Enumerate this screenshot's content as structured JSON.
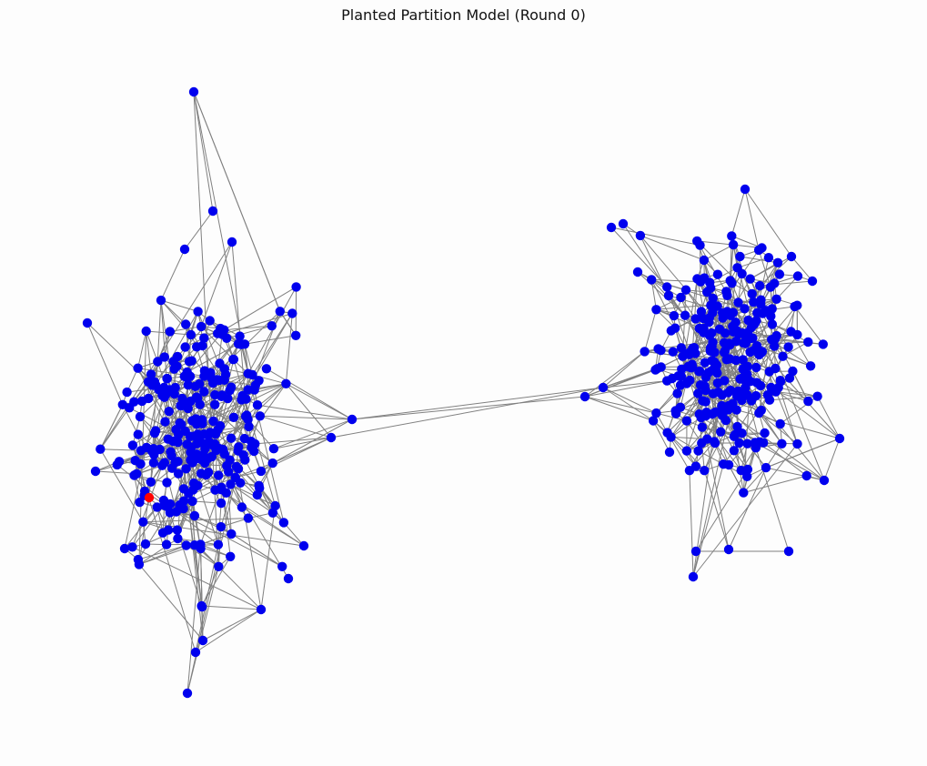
{
  "figure": {
    "title": "Planted Partition Model (Round 0)"
  },
  "style": {
    "background": "#fdfdfd",
    "node_color": "#0000ee",
    "highlight_color": "#ff0000",
    "edge_color": "#808080"
  },
  "graph": {
    "type": "network",
    "layout": "spring",
    "communities": 2,
    "highlighted_node_count": 1,
    "round": 0
  }
}
